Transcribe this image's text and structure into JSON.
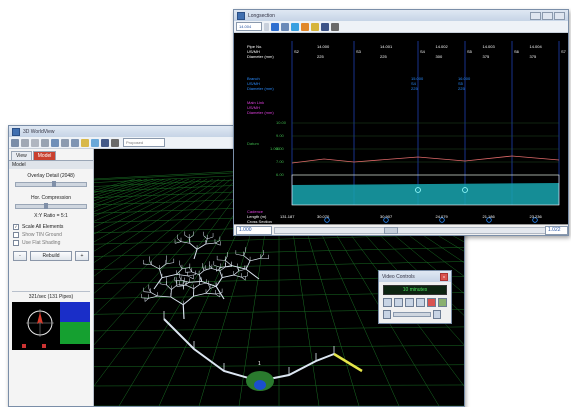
{
  "worldview": {
    "title": "3D WorldView",
    "phase_select": "Proposed",
    "tabs": [
      "View",
      "Model"
    ],
    "section": "Model",
    "overlay_label": "Overlay Detail (2048)",
    "compression_label": "Hor. Compression",
    "ratio_label": "X:Y Ratio = 5:1",
    "checks": [
      {
        "label": "Scale All Elements",
        "checked": true
      },
      {
        "label": "Show TIN Ground",
        "checked": false
      },
      {
        "label": "Use Flat Shading",
        "checked": false
      }
    ],
    "rebuild_label": "Rebuild",
    "minus_label": "-",
    "plus_label": "+",
    "status": "321/sec (131 Pipes)",
    "marker_label": "1",
    "colors": {
      "grid": "#1f8a2c",
      "pipe": "#dce6f2",
      "highlight": "#e6e64a",
      "node": "#2a7a2e"
    }
  },
  "longsection": {
    "title": "Longsection",
    "toolbar_value": "14.004",
    "rows_top": [
      {
        "label": "Pipe No.",
        "color": "#ffffff"
      },
      {
        "label": "US/MH",
        "color": "#ffffff"
      },
      {
        "label": "Diameter (mm)",
        "color": "#ffffff"
      }
    ],
    "nodes": [
      "S2",
      "S3",
      "S4",
      "S5",
      "S6",
      "S7"
    ],
    "pipes": [
      {
        "no": "14.000",
        "dia": "225"
      },
      {
        "no": "14.001",
        "dia": "225"
      },
      {
        "no": "14.002",
        "dia": "300"
      },
      {
        "no": "14.003",
        "dia": "375"
      },
      {
        "no": "14.004",
        "dia": "375"
      }
    ],
    "branch_label": "Branch",
    "branch_sub": [
      "US/MH",
      "Diameter (mm)"
    ],
    "branch_values": [
      {
        "no": "15.000",
        "mh": "S4",
        "dia": "225"
      },
      {
        "no": "16.000",
        "mh": "S5",
        "dia": "225"
      }
    ],
    "main_label": "Main Link",
    "main_sub": [
      "US/MH",
      "Diameter (mm)"
    ],
    "datum_label": "Datum",
    "datum_value": "1.000",
    "levels": [
      "10.00",
      "9.00",
      "8.00",
      "7.00",
      "6.00"
    ],
    "cadence_label": "Cadence",
    "length_label": "Length (m)",
    "length_start": "131.187",
    "lengths": [
      "30.070",
      "30.907",
      "24.079",
      "21.186",
      "23.236"
    ],
    "cross_label": "Cross Section",
    "velocity_label": "Velocity (m/s)",
    "scroll_left": "1.000",
    "scroll_right": "1.022",
    "colors": {
      "ground": "#e06a6a",
      "water": "#19a6b0",
      "pipe": "#ffffff",
      "branch": "#2a8cff",
      "main": "#e040e0",
      "datum": "#3db24a"
    }
  },
  "video": {
    "title": "Video Controls",
    "time": "10 minutes",
    "close": "x"
  }
}
